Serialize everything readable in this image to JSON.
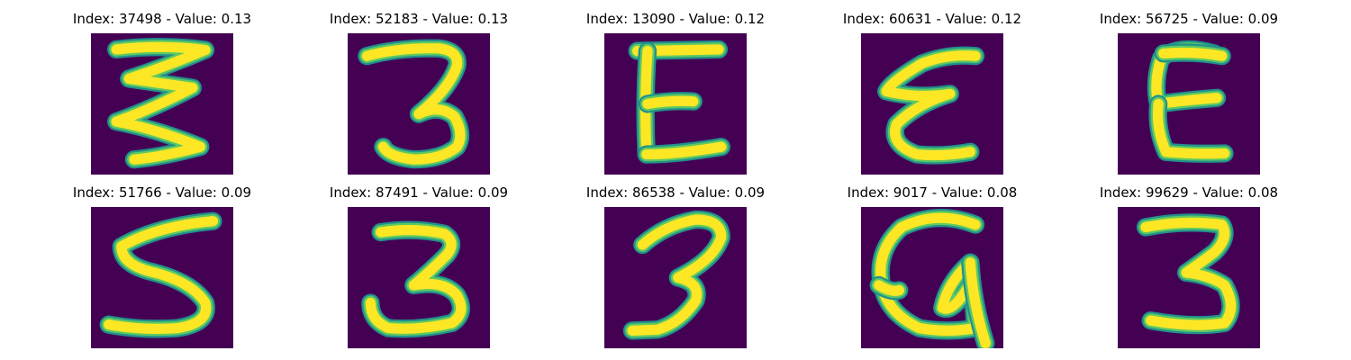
{
  "figure": {
    "colormap": "viridis",
    "background_color": "#440154",
    "stroke_outer_color": "#21918c",
    "stroke_mid_color": "#5ec962",
    "stroke_core_color": "#fde725",
    "panels": [
      {
        "title": "Index: 37498 - Value: 0.13",
        "glyph": "glyph-zigzag-3-icon"
      },
      {
        "title": "Index: 52183 - Value: 0.13",
        "glyph": "glyph-3-thin-icon"
      },
      {
        "title": "Index: 13090 - Value: 0.12",
        "glyph": "glyph-e-icon"
      },
      {
        "title": "Index: 60631 - Value: 0.12",
        "glyph": "glyph-epsilon-icon"
      },
      {
        "title": "Index: 56725 - Value: 0.09",
        "glyph": "glyph-e-rounded-icon"
      },
      {
        "title": "Index: 51766 - Value: 0.09",
        "glyph": "glyph-s-icon"
      },
      {
        "title": "Index: 87491 - Value: 0.09",
        "glyph": "glyph-3-bold-icon"
      },
      {
        "title": "Index: 86538 - Value: 0.09",
        "glyph": "glyph-3-icon"
      },
      {
        "title": "Index: 9017 - Value: 0.08",
        "glyph": "glyph-q-loop-icon"
      },
      {
        "title": "Index: 99629 - Value: 0.08",
        "glyph": "glyph-3-thin-icon"
      }
    ]
  }
}
